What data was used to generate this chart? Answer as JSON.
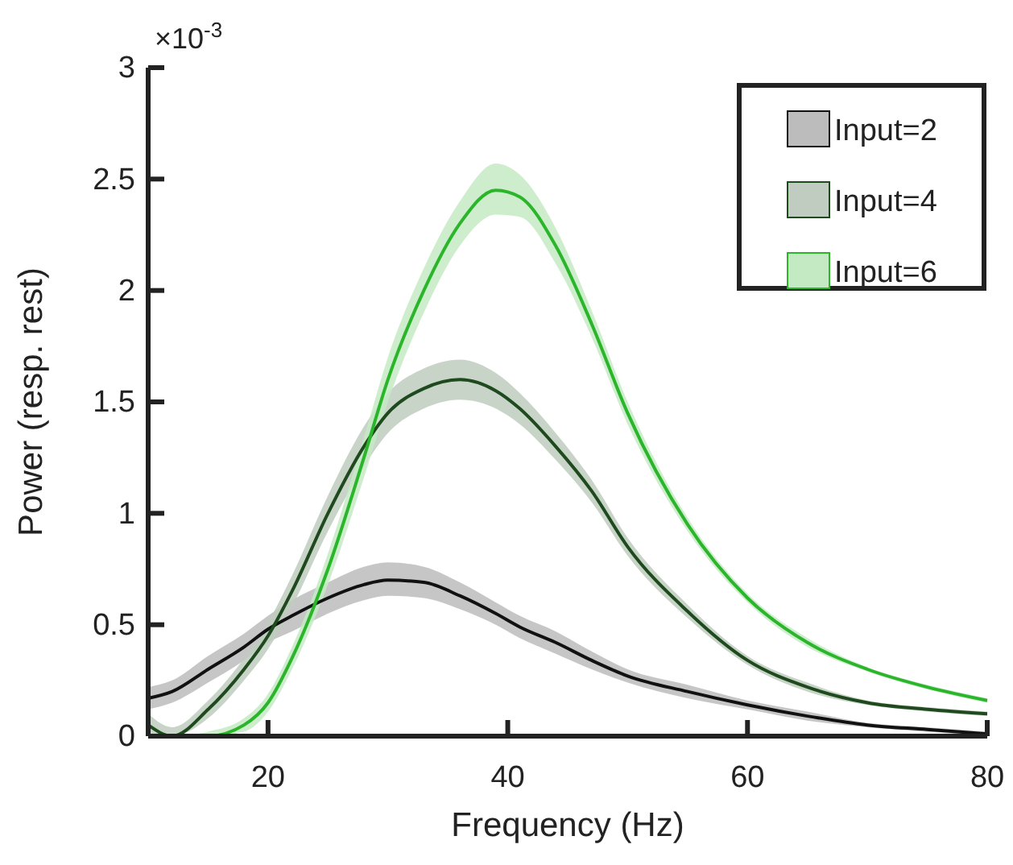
{
  "chart_data": {
    "type": "line",
    "xlabel": "Frequency (Hz)",
    "ylabel": "Power (resp. rest)",
    "annotations": [
      "×10$^{-3}$"
    ],
    "xlim": [
      10,
      80
    ],
    "xticks": [
      20,
      40,
      60,
      80
    ],
    "ylim": [
      0,
      3
    ],
    "yticks": [
      0,
      0.5,
      1,
      1.5,
      2,
      2.5,
      3
    ],
    "grid": false,
    "legend": "top right",
    "marker": "none",
    "line_style": "solid",
    "x": [
      10,
      12,
      15,
      18,
      20,
      22,
      25,
      28,
      30,
      33,
      36,
      39,
      41,
      44,
      47,
      50,
      55,
      60,
      65,
      70,
      75,
      80
    ],
    "series": [
      {
        "name": "Input=2",
        "color": "#111111",
        "values": [
          0.17,
          0.2,
          0.3,
          0.4,
          0.48,
          0.54,
          0.62,
          0.68,
          0.7,
          0.69,
          0.63,
          0.55,
          0.49,
          0.42,
          0.34,
          0.27,
          0.2,
          0.14,
          0.09,
          0.05,
          0.03,
          0.01
        ],
        "lower": [
          0.12,
          0.15,
          0.24,
          0.34,
          0.42,
          0.47,
          0.55,
          0.61,
          0.63,
          0.62,
          0.57,
          0.5,
          0.44,
          0.37,
          0.3,
          0.24,
          0.17,
          0.12,
          0.07,
          0.04,
          0.02,
          0.0
        ],
        "upper": [
          0.22,
          0.25,
          0.36,
          0.46,
          0.54,
          0.61,
          0.69,
          0.76,
          0.78,
          0.76,
          0.69,
          0.6,
          0.54,
          0.47,
          0.38,
          0.3,
          0.23,
          0.16,
          0.11,
          0.06,
          0.04,
          0.02
        ]
      },
      {
        "name": "Input=4",
        "color": "#1e4a1e",
        "values": [
          0.05,
          0.0,
          0.12,
          0.3,
          0.45,
          0.65,
          1.0,
          1.3,
          1.45,
          1.56,
          1.6,
          1.55,
          1.47,
          1.3,
          1.1,
          0.85,
          0.56,
          0.34,
          0.22,
          0.15,
          0.12,
          0.1
        ],
        "lower": [
          0.0,
          0.0,
          0.08,
          0.25,
          0.39,
          0.58,
          0.92,
          1.21,
          1.36,
          1.47,
          1.51,
          1.47,
          1.4,
          1.24,
          1.05,
          0.81,
          0.53,
          0.32,
          0.2,
          0.14,
          0.11,
          0.09
        ],
        "upper": [
          0.1,
          0.04,
          0.16,
          0.35,
          0.51,
          0.72,
          1.08,
          1.39,
          1.54,
          1.65,
          1.69,
          1.63,
          1.54,
          1.36,
          1.15,
          0.89,
          0.59,
          0.36,
          0.24,
          0.16,
          0.13,
          0.11
        ]
      },
      {
        "name": "Input=6",
        "color": "#2bb52b",
        "values": [
          0.0,
          0.0,
          0.0,
          0.05,
          0.15,
          0.35,
          0.75,
          1.25,
          1.6,
          2.0,
          2.3,
          2.45,
          2.42,
          2.2,
          1.85,
          1.45,
          0.95,
          0.62,
          0.42,
          0.3,
          0.22,
          0.16
        ],
        "lower": [
          0.0,
          0.0,
          0.0,
          0.02,
          0.11,
          0.3,
          0.68,
          1.16,
          1.5,
          1.9,
          2.2,
          2.34,
          2.33,
          2.12,
          1.79,
          1.4,
          0.92,
          0.6,
          0.4,
          0.29,
          0.21,
          0.15
        ],
        "upper": [
          0.0,
          0.0,
          0.02,
          0.08,
          0.19,
          0.4,
          0.82,
          1.34,
          1.7,
          2.1,
          2.4,
          2.57,
          2.52,
          2.28,
          1.91,
          1.5,
          0.98,
          0.64,
          0.44,
          0.31,
          0.23,
          0.17
        ]
      }
    ]
  }
}
